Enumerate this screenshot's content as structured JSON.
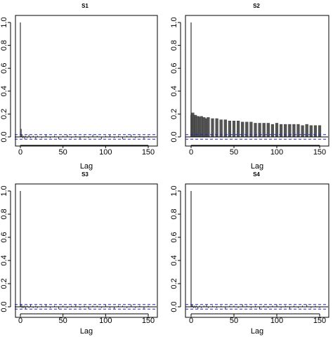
{
  "chart_data": [
    {
      "type": "bar",
      "title": "S1",
      "xlabel": "Lag",
      "ylabel": "",
      "xlim": [
        0,
        150
      ],
      "ylim": [
        -0.05,
        1.0
      ],
      "x_ticks": [
        "0",
        "50",
        "100",
        "150"
      ],
      "y_ticks": [
        "0.0",
        "0.2",
        "0.4",
        "0.6",
        "0.8",
        "1.0"
      ],
      "confidence_band": [
        -0.02,
        0.02
      ],
      "lags": [
        0,
        1,
        2,
        3,
        4,
        5,
        6,
        8,
        10,
        12,
        15,
        18,
        20,
        25,
        30,
        35,
        40,
        45,
        50,
        55,
        60,
        65,
        70,
        75,
        80,
        85,
        90,
        95,
        100,
        105,
        110,
        115,
        120,
        125,
        130,
        135,
        140,
        145,
        150
      ],
      "acf": [
        1.0,
        0.07,
        0.02,
        -0.01,
        0.01,
        -0.02,
        0.01,
        -0.01,
        0.02,
        -0.01,
        0.01,
        -0.02,
        0.01,
        -0.01,
        0.02,
        -0.01,
        0.01,
        -0.02,
        0.01,
        0.02,
        -0.01,
        0.01,
        -0.02,
        0.01,
        -0.01,
        0.02,
        0.01,
        -0.02,
        0.01,
        0.02,
        -0.01,
        0.01,
        -0.02,
        0.01,
        0.02,
        -0.01,
        0.01,
        -0.02,
        0.01
      ]
    },
    {
      "type": "bar",
      "title": "S2",
      "xlabel": "Lag",
      "ylabel": "",
      "xlim": [
        0,
        150
      ],
      "ylim": [
        -0.05,
        1.0
      ],
      "x_ticks": [
        "0",
        "50",
        "100",
        "150"
      ],
      "y_ticks": [
        "0.0",
        "0.2",
        "0.4",
        "0.6",
        "0.8",
        "1.0"
      ],
      "confidence_band": [
        -0.02,
        0.02
      ],
      "lags": [
        0,
        1,
        2,
        3,
        4,
        5,
        6,
        8,
        10,
        12,
        15,
        18,
        20,
        25,
        30,
        35,
        40,
        45,
        50,
        55,
        60,
        65,
        70,
        75,
        80,
        85,
        90,
        95,
        100,
        105,
        110,
        115,
        120,
        125,
        130,
        135,
        140,
        145,
        150
      ],
      "acf": [
        1.0,
        0.19,
        0.21,
        0.19,
        0.18,
        0.19,
        0.17,
        0.18,
        0.17,
        0.18,
        0.17,
        0.16,
        0.17,
        0.16,
        0.16,
        0.15,
        0.15,
        0.14,
        0.14,
        0.14,
        0.13,
        0.13,
        0.13,
        0.12,
        0.12,
        0.12,
        0.12,
        0.11,
        0.12,
        0.11,
        0.11,
        0.11,
        0.11,
        0.11,
        0.1,
        0.11,
        0.1,
        0.1,
        0.1
      ]
    },
    {
      "type": "bar",
      "title": "S3",
      "xlabel": "Lag",
      "ylabel": "",
      "xlim": [
        0,
        150
      ],
      "ylim": [
        -0.05,
        1.0
      ],
      "x_ticks": [
        "0",
        "50",
        "100",
        "150"
      ],
      "y_ticks": [
        "0.0",
        "0.2",
        "0.4",
        "0.6",
        "0.8",
        "1.0"
      ],
      "confidence_band": [
        -0.02,
        0.02
      ],
      "lags": [
        0,
        1,
        2,
        3,
        4,
        5,
        6,
        8,
        10,
        12,
        15,
        18,
        20,
        25,
        30,
        35,
        40,
        45,
        50,
        55,
        60,
        65,
        70,
        75,
        80,
        85,
        90,
        95,
        100,
        105,
        110,
        115,
        120,
        125,
        130,
        135,
        140,
        145,
        150
      ],
      "acf": [
        1.0,
        0.02,
        -0.01,
        0.01,
        -0.01,
        0.01,
        -0.02,
        0.01,
        -0.01,
        0.02,
        -0.01,
        0.01,
        -0.01,
        0.01,
        0.02,
        -0.01,
        0.01,
        -0.02,
        0.01,
        -0.01,
        0.01,
        0.02,
        -0.01,
        0.01,
        -0.02,
        0.01,
        0.01,
        -0.01,
        0.02,
        -0.01,
        -0.02,
        0.01,
        0.01,
        -0.01,
        0.02,
        -0.01,
        0.01,
        -0.02,
        0.01
      ]
    },
    {
      "type": "bar",
      "title": "S4",
      "xlabel": "Lag",
      "ylabel": "",
      "xlim": [
        0,
        150
      ],
      "ylim": [
        -0.05,
        1.0
      ],
      "x_ticks": [
        "0",
        "50",
        "100",
        "150"
      ],
      "y_ticks": [
        "0.0",
        "0.2",
        "0.4",
        "0.6",
        "0.8",
        "1.0"
      ],
      "confidence_band": [
        -0.02,
        0.02
      ],
      "lags": [
        0,
        1,
        2,
        3,
        4,
        5,
        6,
        8,
        10,
        12,
        15,
        18,
        20,
        25,
        30,
        35,
        40,
        45,
        50,
        55,
        60,
        65,
        70,
        75,
        80,
        85,
        90,
        95,
        100,
        105,
        110,
        115,
        120,
        125,
        130,
        135,
        140,
        145,
        150
      ],
      "acf": [
        1.0,
        0.02,
        0.01,
        -0.01,
        0.01,
        -0.01,
        0.01,
        -0.02,
        0.01,
        -0.01,
        0.01,
        0.02,
        -0.01,
        0.01,
        -0.01,
        0.01,
        -0.02,
        0.01,
        0.01,
        -0.01,
        0.02,
        0.01,
        -0.01,
        0.01,
        -0.02,
        0.01,
        -0.01,
        0.01,
        0.02,
        -0.01,
        0.01,
        -0.02,
        0.01,
        -0.01,
        0.01,
        0.02,
        -0.01,
        0.01,
        -0.01
      ]
    }
  ],
  "colors": {
    "bars": "#222222",
    "bars_dense": "#555555",
    "zero_line": "#000000",
    "confidence_lines": "#2222cc",
    "frame": "#000000"
  }
}
